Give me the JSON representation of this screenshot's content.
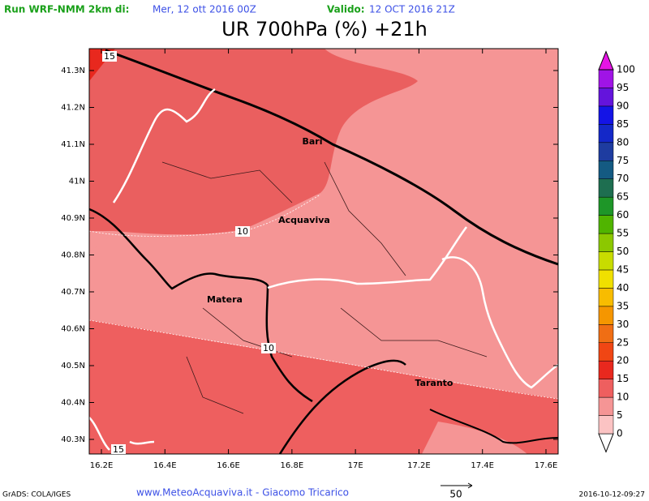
{
  "header": {
    "run_label": "Run WRF-NMM 2km di:",
    "run_date": "Mer, 12 ott 2016 00Z",
    "valid_label": "Valido:",
    "valid_date": "12 OCT 2016 21Z"
  },
  "title": "UR 700hPa (%) +21h",
  "map": {
    "lat_ticks": [
      {
        "value": 41.3,
        "label": "41.3N"
      },
      {
        "value": 41.2,
        "label": "41.2N"
      },
      {
        "value": 41.1,
        "label": "41.1N"
      },
      {
        "value": 41.0,
        "label": "41N"
      },
      {
        "value": 40.9,
        "label": "40.9N"
      },
      {
        "value": 40.8,
        "label": "40.8N"
      },
      {
        "value": 40.7,
        "label": "40.7N"
      },
      {
        "value": 40.6,
        "label": "40.6N"
      },
      {
        "value": 40.5,
        "label": "40.5N"
      },
      {
        "value": 40.4,
        "label": "40.4N"
      },
      {
        "value": 40.3,
        "label": "40.3N"
      }
    ],
    "lon_ticks": [
      {
        "value": 16.2,
        "label": "16.2E"
      },
      {
        "value": 16.4,
        "label": "16.4E"
      },
      {
        "value": 16.6,
        "label": "16.6E"
      },
      {
        "value": 16.8,
        "label": "16.8E"
      },
      {
        "value": 17.0,
        "label": "17E"
      },
      {
        "value": 17.2,
        "label": "17.2E"
      },
      {
        "value": 17.4,
        "label": "17.4E"
      },
      {
        "value": 17.6,
        "label": "17.6E"
      }
    ],
    "cities": [
      "Bari",
      "Acquaviva",
      "Matera",
      "Taranto"
    ],
    "contour_labels": [
      "15",
      "10",
      "10",
      "15"
    ]
  },
  "colorbar": {
    "levels": [
      0,
      5,
      10,
      15,
      20,
      25,
      30,
      35,
      40,
      45,
      50,
      55,
      60,
      65,
      70,
      75,
      80,
      85,
      90,
      95,
      100
    ],
    "colors": [
      "#ffffff",
      "#fbc3c3",
      "#f59595",
      "#ee5f5f",
      "#e8281e",
      "#f04614",
      "#f06e14",
      "#f59600",
      "#f8bc00",
      "#f0e000",
      "#c8dc00",
      "#8cc800",
      "#50b400",
      "#1e9628",
      "#1e6e50",
      "#145a82",
      "#1e3ca0",
      "#1428c8",
      "#1414e6",
      "#6414dc",
      "#a014e6",
      "#e614e6"
    ]
  },
  "footer": {
    "software": "GrADS: COLA/IGES",
    "credit": "www.MeteoAcquaviva.it - Giacomo Tricarico",
    "arrow_scale": "50",
    "timestamp": "2016-10-12-09:27"
  }
}
